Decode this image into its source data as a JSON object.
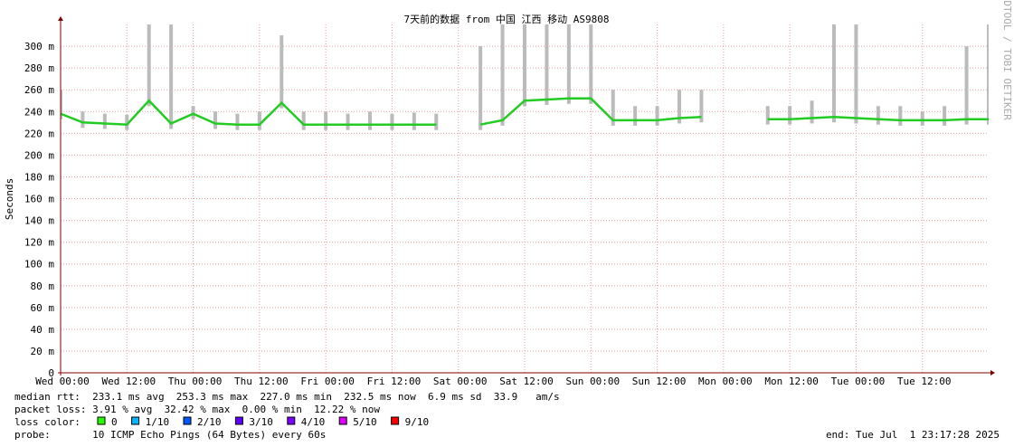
{
  "chart_data": {
    "type": "line",
    "title": "7天前的数据 from 中国 江西 移动 AS9808",
    "y_label": "Seconds",
    "side_text": "RRDTOOL / TOBI OETIKER",
    "xlim": [
      0,
      168
    ],
    "xticks": [
      {
        "value": 0,
        "label": "Wed 00:00"
      },
      {
        "value": 12,
        "label": "Wed 12:00"
      },
      {
        "value": 24,
        "label": "Thu 00:00"
      },
      {
        "value": 36,
        "label": "Thu 12:00"
      },
      {
        "value": 48,
        "label": "Fri 00:00"
      },
      {
        "value": 60,
        "label": "Fri 12:00"
      },
      {
        "value": 72,
        "label": "Sat 00:00"
      },
      {
        "value": 84,
        "label": "Sat 12:00"
      },
      {
        "value": 96,
        "label": "Sun 00:00"
      },
      {
        "value": 108,
        "label": "Sun 12:00"
      },
      {
        "value": 120,
        "label": "Mon 00:00"
      },
      {
        "value": 132,
        "label": "Mon 12:00"
      },
      {
        "value": 144,
        "label": "Tue 00:00"
      },
      {
        "value": 156,
        "label": "Tue 12:00"
      }
    ],
    "ylim": [
      0,
      0.32
    ],
    "yticks": [
      {
        "value": 0,
        "label": "0"
      },
      {
        "value": 0.02,
        "label": "20 m"
      },
      {
        "value": 0.04,
        "label": "40 m"
      },
      {
        "value": 0.06,
        "label": "60 m"
      },
      {
        "value": 0.08,
        "label": "80 m"
      },
      {
        "value": 0.1,
        "label": "100 m"
      },
      {
        "value": 0.12,
        "label": "120 m"
      },
      {
        "value": 0.14,
        "label": "140 m"
      },
      {
        "value": 0.16,
        "label": "160 m"
      },
      {
        "value": 0.18,
        "label": "180 m"
      },
      {
        "value": 0.2,
        "label": "200 m"
      },
      {
        "value": 0.22,
        "label": "220 m"
      },
      {
        "value": 0.24,
        "label": "240 m"
      },
      {
        "value": 0.26,
        "label": "260 m"
      },
      {
        "value": 0.28,
        "label": "280 m"
      },
      {
        "value": 0.3,
        "label": "300 m"
      }
    ],
    "grid": true,
    "x": [
      0,
      4,
      8,
      12,
      16,
      20,
      24,
      28,
      32,
      36,
      40,
      44,
      48,
      52,
      56,
      60,
      64,
      68,
      72,
      76,
      80,
      84,
      88,
      92,
      96,
      100,
      104,
      108,
      112,
      116,
      120,
      124,
      128,
      132,
      136,
      140,
      144,
      148,
      152,
      156,
      160,
      164,
      168
    ],
    "median": {
      "color": "#22cc22",
      "values": [
        0.238,
        0.23,
        0.229,
        0.228,
        0.25,
        0.229,
        0.238,
        0.229,
        0.228,
        0.228,
        0.248,
        0.228,
        0.228,
        0.228,
        0.228,
        0.228,
        0.228,
        0.228,
        null,
        0.228,
        0.232,
        0.25,
        0.251,
        0.252,
        0.252,
        0.232,
        0.232,
        0.232,
        0.234,
        0.235,
        null,
        null,
        0.233,
        0.233,
        0.234,
        0.235,
        0.234,
        0.233,
        0.232,
        0.232,
        0.232,
        0.233,
        0.233
      ]
    },
    "max": {
      "color": "#bbbbbb",
      "values": [
        0.26,
        0.24,
        0.238,
        0.237,
        0.35,
        0.35,
        0.245,
        0.24,
        0.238,
        0.24,
        0.31,
        0.24,
        0.24,
        0.238,
        0.24,
        0.238,
        0.239,
        0.238,
        null,
        0.3,
        0.35,
        0.35,
        0.35,
        0.35,
        0.35,
        0.26,
        0.245,
        0.245,
        0.26,
        0.26,
        null,
        null,
        0.245,
        0.245,
        0.25,
        0.35,
        0.35,
        0.245,
        0.245,
        0.24,
        0.245,
        0.3,
        0.35
      ]
    },
    "stats": [
      "median rtt:  233.1 ms avg  253.3 ms max  227.0 ms min  232.5 ms now  6.9 ms sd  33.9   am/s",
      "packet loss: 3.91 % avg  32.42 % max  0.00 % min  12.22 % now"
    ],
    "loss_label": "loss color:",
    "loss_colors": [
      {
        "label": "0",
        "color": "#26ff00"
      },
      {
        "label": "1/10",
        "color": "#00b8ff"
      },
      {
        "label": "2/10",
        "color": "#0059ff"
      },
      {
        "label": "3/10",
        "color": "#5e00ff"
      },
      {
        "label": "4/10",
        "color": "#7e00ff"
      },
      {
        "label": "5/10",
        "color": "#dd00ff"
      },
      {
        "label": "9/10",
        "color": "#ff0000"
      }
    ],
    "probe": "probe:       10 ICMP Echo Pings (64 Bytes) every 60s",
    "end": "end: Tue Jul  1 23:17:28 2025"
  }
}
